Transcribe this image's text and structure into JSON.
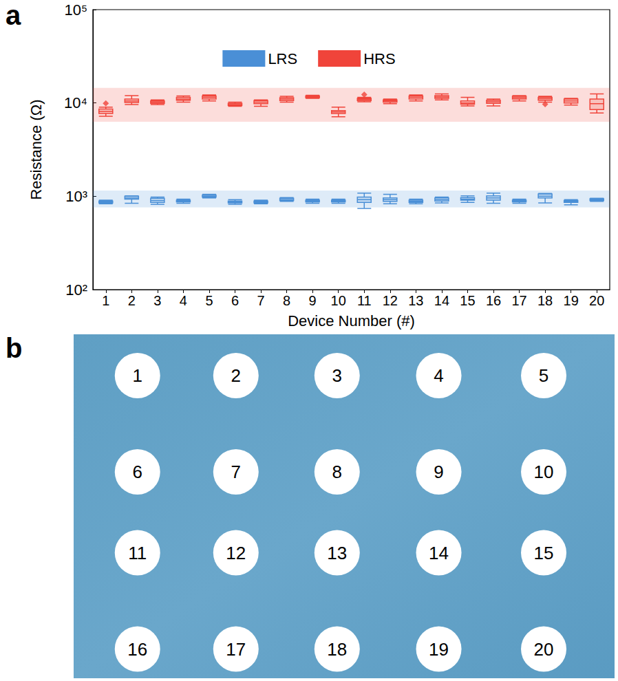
{
  "chart_data": {
    "type": "boxplot",
    "panel_label": "a",
    "x_label": "Device Number (#)",
    "y_label": "Resistance (Ω)",
    "categories": [
      "1",
      "2",
      "3",
      "4",
      "5",
      "6",
      "7",
      "8",
      "9",
      "10",
      "11",
      "12",
      "13",
      "14",
      "15",
      "16",
      "17",
      "18",
      "19",
      "20"
    ],
    "series": [
      {
        "name": "LRS",
        "color": "#4a8fd6",
        "band": [
          760,
          1150
        ],
        "values": [
          [
            830,
            850,
            870,
            890,
            910
          ],
          [
            840,
            930,
            960,
            1000,
            1010
          ],
          [
            820,
            860,
            900,
            950,
            980
          ],
          [
            840,
            870,
            890,
            910,
            930
          ],
          [
            960,
            980,
            1000,
            1030,
            1050
          ],
          [
            820,
            850,
            870,
            890,
            920
          ],
          [
            830,
            850,
            870,
            890,
            910
          ],
          [
            880,
            900,
            920,
            950,
            970
          ],
          [
            840,
            870,
            890,
            910,
            930
          ],
          [
            840,
            870,
            890,
            910,
            930
          ],
          [
            740,
            860,
            920,
            980,
            1080
          ],
          [
            830,
            880,
            920,
            960,
            1050
          ],
          [
            830,
            860,
            880,
            910,
            930
          ],
          [
            850,
            890,
            920,
            960,
            980
          ],
          [
            860,
            910,
            930,
            970,
            1010
          ],
          [
            840,
            910,
            960,
            1010,
            1080
          ],
          [
            840,
            870,
            890,
            910,
            930
          ],
          [
            850,
            960,
            1000,
            1060,
            1070
          ],
          [
            810,
            860,
            880,
            900,
            920
          ],
          [
            880,
            900,
            920,
            940,
            950
          ]
        ],
        "outliers": [
          [],
          [],
          [],
          [],
          [],
          [],
          [],
          [],
          [],
          [],
          [],
          [],
          [],
          [],
          [],
          [],
          [],
          [],
          [],
          []
        ]
      },
      {
        "name": "HRS",
        "color": "#f0443a",
        "band": [
          6300,
          14500
        ],
        "marker": "diamond",
        "values": [
          [
            7200,
            7700,
            8100,
            8600,
            9000
          ],
          [
            9600,
            10100,
            10500,
            11000,
            12000
          ],
          [
            9600,
            9900,
            10200,
            10500,
            10800
          ],
          [
            10200,
            10700,
            11000,
            11500,
            11900
          ],
          [
            10500,
            11000,
            11500,
            11900,
            12200
          ],
          [
            9200,
            9400,
            9600,
            9900,
            10200
          ],
          [
            9200,
            9800,
            10200,
            10600,
            10800
          ],
          [
            10200,
            10600,
            11000,
            11400,
            11800
          ],
          [
            11200,
            11400,
            11700,
            11900,
            12100
          ],
          [
            7100,
            7700,
            8000,
            8300,
            9000
          ],
          [
            10300,
            10600,
            10900,
            11200,
            11500
          ],
          [
            9800,
            10200,
            10500,
            10800,
            11000
          ],
          [
            10500,
            11000,
            11500,
            11900,
            12200
          ],
          [
            10800,
            11200,
            11600,
            12000,
            12500
          ],
          [
            9300,
            9700,
            10000,
            10500,
            11500
          ],
          [
            9300,
            9900,
            10300,
            10700,
            11000
          ],
          [
            10500,
            11000,
            11400,
            11800,
            12000
          ],
          [
            10200,
            10700,
            11100,
            11500,
            11800
          ],
          [
            9500,
            10000,
            10500,
            11000,
            11200
          ],
          [
            7800,
            8500,
            9800,
            11000,
            12500
          ]
        ],
        "outliers": [
          [
            9900
          ],
          [],
          [],
          [],
          [],
          [],
          [],
          [],
          [],
          [],
          [
            12300
          ],
          [],
          [],
          [],
          [],
          [],
          [],
          [
            9700
          ],
          [],
          []
        ]
      }
    ],
    "log": "y",
    "ylim": [
      100,
      100000
    ],
    "yticks": [
      {
        "value": 100,
        "label": "10²"
      },
      {
        "value": 1000,
        "label": "10³"
      },
      {
        "value": 10000,
        "label": "10⁴"
      },
      {
        "value": 100000,
        "label": "10⁵"
      }
    ],
    "grid": false,
    "legend": "top"
  },
  "photo": {
    "panel_label": "b",
    "devices": [
      "1",
      "2",
      "3",
      "4",
      "5",
      "6",
      "7",
      "8",
      "9",
      "10",
      "11",
      "12",
      "13",
      "14",
      "15",
      "16",
      "17",
      "18",
      "19",
      "20"
    ]
  }
}
